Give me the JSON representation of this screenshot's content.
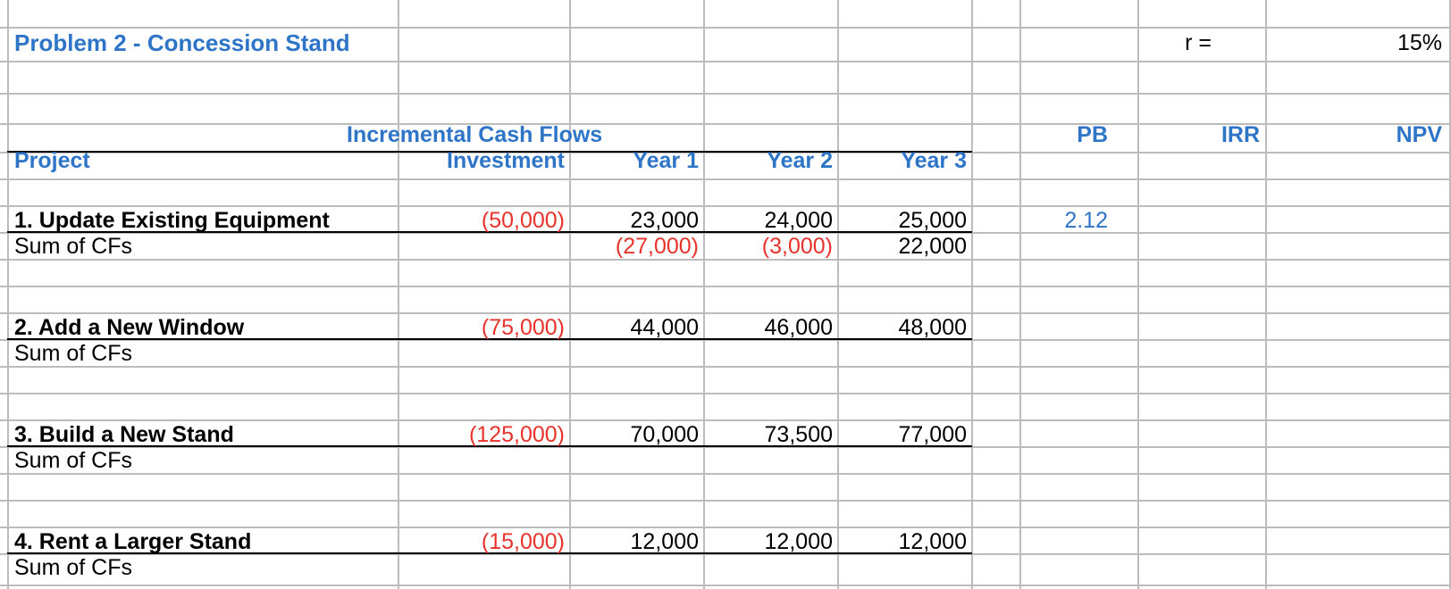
{
  "colors": {
    "accent": "#2e75c8",
    "negative": "#e8322b",
    "grid": "#bcbcbc"
  },
  "title": "Problem 2 - Concession Stand",
  "rate": {
    "label": "r =",
    "value": "15%"
  },
  "group_header": "Incremental Cash Flows",
  "metric_headers": {
    "pb": "PB",
    "irr": "IRR",
    "npv": "NPV"
  },
  "columns": {
    "project": "Project",
    "investment": "Investment",
    "year1": "Year 1",
    "year2": "Year 2",
    "year3": "Year 3"
  },
  "sum_label": "Sum of CFs",
  "projects": [
    {
      "name": "1. Update Existing Equipment",
      "investment": "(50,000)",
      "year1": "23,000",
      "year2": "24,000",
      "year3": "25,000",
      "sum_year1": "(27,000)",
      "sum_year2": "(3,000)",
      "sum_year3": "22,000",
      "pb": "2.12"
    },
    {
      "name": "2. Add a New Window",
      "investment": "(75,000)",
      "year1": "44,000",
      "year2": "46,000",
      "year3": "48,000"
    },
    {
      "name": "3. Build a New Stand",
      "investment": "(125,000)",
      "year1": "70,000",
      "year2": "73,500",
      "year3": "77,000"
    },
    {
      "name": "4. Rent a Larger Stand",
      "investment": "(15,000)",
      "year1": "12,000",
      "year2": "12,000",
      "year3": "12,000"
    }
  ]
}
